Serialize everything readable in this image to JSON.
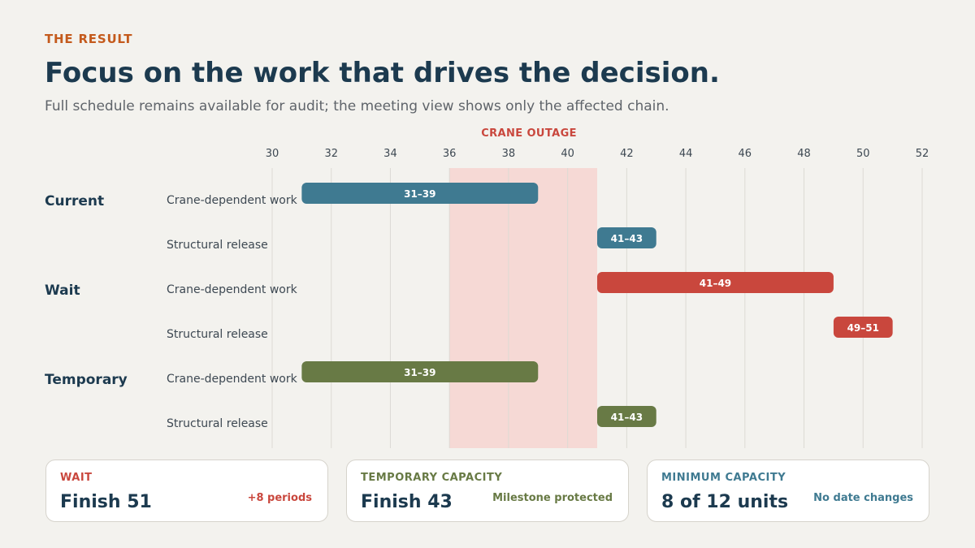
{
  "header": {
    "eyebrow": "THE RESULT",
    "title": "Focus on the work that drives the decision.",
    "subtitle": "Full schedule remains available for audit; the meeting view shows only the affected chain."
  },
  "colors": {
    "current": "#3f7a91",
    "wait": "#c9473d",
    "temporary": "#687a45",
    "outage_band": "#f6d9d5",
    "outage_label": "#c9473d",
    "title": "#1c3a4f"
  },
  "chart_data": {
    "type": "gantt",
    "x_ticks": [
      30,
      32,
      34,
      36,
      38,
      40,
      42,
      44,
      46,
      48,
      50,
      52
    ],
    "xlim": [
      30,
      52
    ],
    "grid": true,
    "outage": {
      "label": "CRANE OUTAGE",
      "start": 36,
      "end": 41
    },
    "groups": [
      {
        "name": "Current",
        "color_key": "current",
        "tasks": [
          {
            "name": "Crane-dependent work",
            "start": 31,
            "end": 39,
            "label": "31–39"
          },
          {
            "name": "Structural release",
            "start": 41,
            "end": 43,
            "label": "41–43"
          }
        ]
      },
      {
        "name": "Wait",
        "color_key": "wait",
        "tasks": [
          {
            "name": "Crane-dependent work",
            "start": 41,
            "end": 49,
            "label": "41–49"
          },
          {
            "name": "Structural release",
            "start": 49,
            "end": 51,
            "label": "49–51"
          }
        ]
      },
      {
        "name": "Temporary",
        "color_key": "temporary",
        "tasks": [
          {
            "name": "Crane-dependent work",
            "start": 31,
            "end": 39,
            "label": "31–39"
          },
          {
            "name": "Structural release",
            "start": 41,
            "end": 43,
            "label": "41–43"
          }
        ]
      }
    ]
  },
  "cards": [
    {
      "label": "WAIT",
      "value": "Finish 51",
      "note": "+8 periods",
      "color_key": "wait"
    },
    {
      "label": "TEMPORARY CAPACITY",
      "value": "Finish 43",
      "note": "Milestone protected",
      "color_key": "temporary"
    },
    {
      "label": "MINIMUM CAPACITY",
      "value": "8 of 12 units",
      "note": "No date changes",
      "color_key": "current"
    }
  ]
}
